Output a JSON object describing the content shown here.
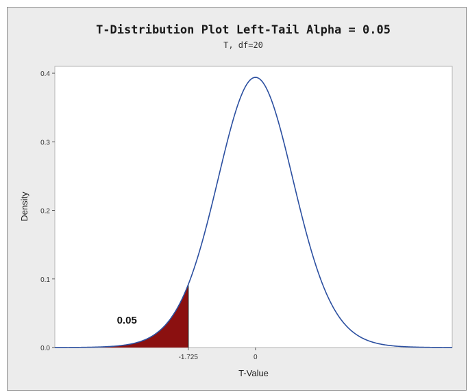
{
  "chart_data": {
    "type": "area",
    "title": "T-Distribution Plot Left-Tail Alpha = 0.05",
    "subtitle": "T, df=20",
    "xlabel": "T-Value",
    "ylabel": "Density",
    "distribution": "t",
    "df": 20,
    "xlim": [
      -5.15,
      5.05
    ],
    "ylim": [
      0,
      0.41
    ],
    "y_ticks": [
      "0.0",
      "0.1",
      "0.2",
      "0.3",
      "0.4"
    ],
    "x_ticks": [
      {
        "value": -1.725,
        "label": "-1.725"
      },
      {
        "value": 0,
        "label": "0"
      }
    ],
    "shaded_region": {
      "from": -5.15,
      "to": -1.725,
      "probability_label": "0.05",
      "color": "#8b1010"
    },
    "curve_color": "#2b4fa0",
    "grid": false,
    "legend": "none"
  }
}
